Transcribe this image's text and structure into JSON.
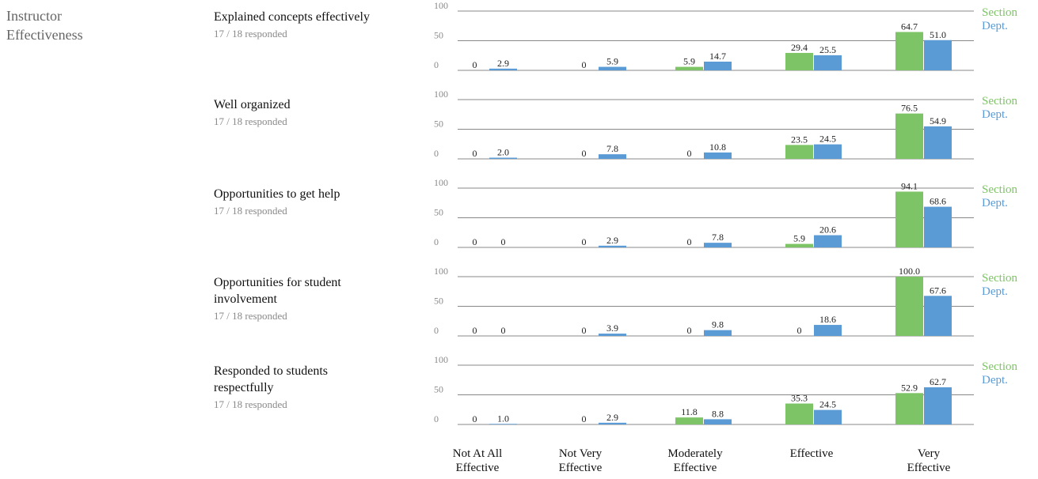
{
  "section": {
    "title_lines": [
      "Instructor",
      "Effectiveness"
    ]
  },
  "categories": [
    [
      "Not At All",
      "Effective"
    ],
    [
      "Not Very",
      "Effective"
    ],
    [
      "Moderately",
      "Effective"
    ],
    [
      "Effective",
      ""
    ],
    [
      "Very",
      "Effective"
    ]
  ],
  "colors": {
    "section": "#7dc466",
    "dept": "#5b9bd5",
    "gridline": "#888888"
  },
  "chart_data": [
    {
      "type": "bar",
      "title": "Explained concepts effectively",
      "responded": "17 / 18 responded",
      "categories": [
        "Not At All Effective",
        "Not Very Effective",
        "Moderately Effective",
        "Effective",
        "Very Effective"
      ],
      "series": [
        {
          "name": "Section",
          "values": [
            0,
            0,
            5.9,
            29.4,
            64.7
          ],
          "labels": [
            "0",
            "0",
            "5.9",
            "29.4",
            "64.7"
          ]
        },
        {
          "name": "Dept.",
          "values": [
            2.9,
            5.9,
            14.7,
            25.5,
            51.0
          ],
          "labels": [
            "2.9",
            "5.9",
            "14.7",
            "25.5",
            "51.0"
          ]
        }
      ],
      "yticks": [
        "100",
        "50",
        "0"
      ],
      "ylim": [
        0,
        100
      ]
    },
    {
      "type": "bar",
      "title": "Well organized",
      "responded": "17 / 18 responded",
      "categories": [
        "Not At All Effective",
        "Not Very Effective",
        "Moderately Effective",
        "Effective",
        "Very Effective"
      ],
      "series": [
        {
          "name": "Section",
          "values": [
            0,
            0,
            0,
            23.5,
            76.5
          ],
          "labels": [
            "0",
            "0",
            "0",
            "23.5",
            "76.5"
          ]
        },
        {
          "name": "Dept.",
          "values": [
            2.0,
            7.8,
            10.8,
            24.5,
            54.9
          ],
          "labels": [
            "2.0",
            "7.8",
            "10.8",
            "24.5",
            "54.9"
          ]
        }
      ],
      "yticks": [
        "100",
        "50",
        "0"
      ],
      "ylim": [
        0,
        100
      ]
    },
    {
      "type": "bar",
      "title": "Opportunities to get help",
      "responded": "17 / 18 responded",
      "categories": [
        "Not At All Effective",
        "Not Very Effective",
        "Moderately Effective",
        "Effective",
        "Very Effective"
      ],
      "series": [
        {
          "name": "Section",
          "values": [
            0,
            0,
            0,
            5.9,
            94.1
          ],
          "labels": [
            "0",
            "0",
            "0",
            "5.9",
            "94.1"
          ]
        },
        {
          "name": "Dept.",
          "values": [
            0,
            2.9,
            7.8,
            20.6,
            68.6
          ],
          "labels": [
            "0",
            "2.9",
            "7.8",
            "20.6",
            "68.6"
          ]
        }
      ],
      "yticks": [
        "100",
        "50",
        "0"
      ],
      "ylim": [
        0,
        100
      ]
    },
    {
      "type": "bar",
      "title": "Opportunities for student involvement",
      "responded": "17 / 18 responded",
      "categories": [
        "Not At All Effective",
        "Not Very Effective",
        "Moderately Effective",
        "Effective",
        "Very Effective"
      ],
      "series": [
        {
          "name": "Section",
          "values": [
            0,
            0,
            0,
            0,
            100.0
          ],
          "labels": [
            "0",
            "0",
            "0",
            "0",
            "100.0"
          ]
        },
        {
          "name": "Dept.",
          "values": [
            0,
            3.9,
            9.8,
            18.6,
            67.6
          ],
          "labels": [
            "0",
            "3.9",
            "9.8",
            "18.6",
            "67.6"
          ]
        }
      ],
      "yticks": [
        "100",
        "50",
        "0"
      ],
      "ylim": [
        0,
        100
      ]
    },
    {
      "type": "bar",
      "title": "Responded to students respectfully",
      "responded": "17 / 18 responded",
      "categories": [
        "Not At All Effective",
        "Not Very Effective",
        "Moderately Effective",
        "Effective",
        "Very Effective"
      ],
      "series": [
        {
          "name": "Section",
          "values": [
            0,
            0,
            11.8,
            35.3,
            52.9
          ],
          "labels": [
            "0",
            "0",
            "11.8",
            "35.3",
            "52.9"
          ]
        },
        {
          "name": "Dept.",
          "values": [
            1.0,
            2.9,
            8.8,
            24.5,
            62.7
          ],
          "labels": [
            "1.0",
            "2.9",
            "8.8",
            "24.5",
            "62.7"
          ]
        }
      ],
      "yticks": [
        "100",
        "50",
        "0"
      ],
      "ylim": [
        0,
        100
      ]
    }
  ]
}
